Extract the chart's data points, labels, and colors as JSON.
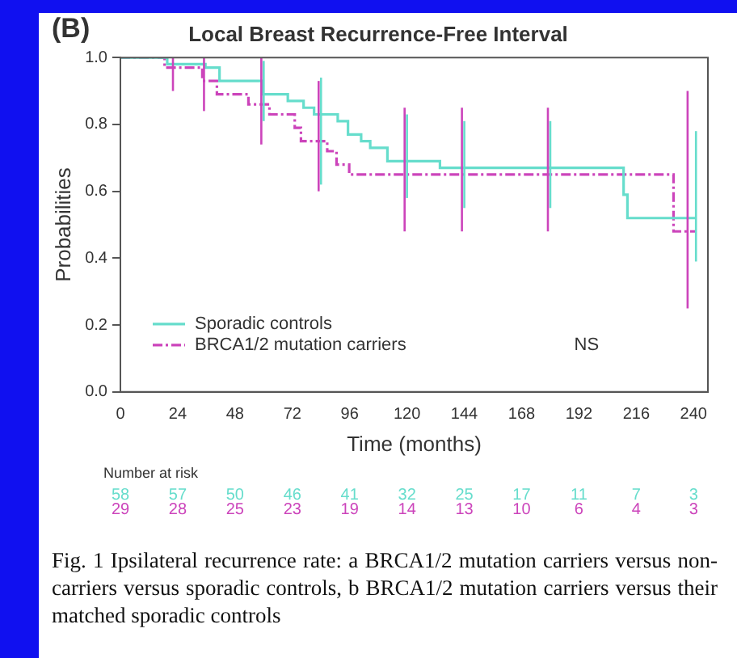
{
  "chart_data": {
    "type": "step",
    "title": "Local Breast Recurrence-Free Interval",
    "xlabel": "Time (months)",
    "ylabel": "Probabilities",
    "xlim": [
      0,
      246
    ],
    "xticks": [
      0,
      24,
      48,
      72,
      96,
      120,
      144,
      168,
      192,
      216,
      240
    ],
    "ylim": [
      0,
      1
    ],
    "yticks": [
      {
        "value": 0,
        "label": "0.0"
      },
      {
        "value": 0.2,
        "label": "0.2"
      },
      {
        "value": 0.4,
        "label": "0.4"
      },
      {
        "value": 0.6,
        "label": "0.6"
      },
      {
        "value": 0.8,
        "label": "0.8"
      },
      {
        "value": 1,
        "label": "1.0"
      }
    ],
    "grid": false,
    "legend": "bottom left",
    "marker": "none",
    "series": [
      {
        "name": "Sporadic controls",
        "color": "#66ddcc",
        "line_style": "solid",
        "x": [
          0,
          19.6,
          35.6,
          41.5,
          59.6,
          60,
          70.1,
          76.7,
          81.1,
          84,
          91,
          95.3,
          100.8,
          104.6,
          111.8,
          120,
          133.8,
          144,
          180,
          210.7,
          212.3,
          241
        ],
        "values": [
          1,
          0.98,
          0.97,
          0.93,
          0.89,
          0.89,
          0.87,
          0.85,
          0.83,
          0.83,
          0.81,
          0.77,
          0.75,
          0.73,
          0.69,
          0.69,
          0.67,
          0.67,
          0.67,
          0.59,
          0.52,
          0.52
        ],
        "errors": [
          null,
          null,
          null,
          null,
          null,
          [
            0.81,
            0.99
          ],
          null,
          null,
          null,
          [
            0.62,
            0.94
          ],
          null,
          null,
          null,
          null,
          null,
          [
            0.58,
            0.83
          ],
          null,
          [
            0.55,
            0.81
          ],
          [
            0.55,
            0.81
          ],
          null,
          null,
          [
            0.39,
            0.78
          ]
        ]
      },
      {
        "name": "BRCA1/2 mutation carriers",
        "color": "#cc44bb",
        "line_style": "dashed",
        "x": [
          0,
          18.5,
          22,
          34.3,
          35,
          40.4,
          53.6,
          59,
          62.4,
          73,
          75.6,
          83,
          86.6,
          90.5,
          95.8,
          119,
          143,
          179,
          231.6,
          237.5,
          241
        ],
        "values": [
          1,
          0.97,
          0.97,
          0.93,
          0.93,
          0.89,
          0.86,
          0.86,
          0.83,
          0.79,
          0.75,
          0.75,
          0.72,
          0.68,
          0.65,
          0.65,
          0.65,
          0.65,
          0.48,
          0.48,
          0.48
        ],
        "errors": [
          null,
          null,
          [
            0.9,
            1
          ],
          null,
          [
            0.84,
            1
          ],
          null,
          null,
          [
            0.74,
            1
          ],
          null,
          null,
          null,
          [
            0.6,
            0.93
          ],
          null,
          null,
          null,
          [
            0.48,
            0.85
          ],
          [
            0.48,
            0.85
          ],
          [
            0.48,
            0.85
          ],
          null,
          [
            0.25,
            0.9
          ],
          null
        ]
      }
    ],
    "annotations": [
      "(B)",
      "NS",
      "Number at risk",
      "58 57 50 46 41 32 25 17 11 7 3",
      "29 28 25 23 19 14 13 10 6 4 3",
      "Fig. 1 Ipsilateral recurrence rate: a BRCA1/2 mutation carriers versus non-carriers versus sporadic controls, b BRCA1/2 mutation carriers versus their matched sporadic controls"
    ]
  }
}
